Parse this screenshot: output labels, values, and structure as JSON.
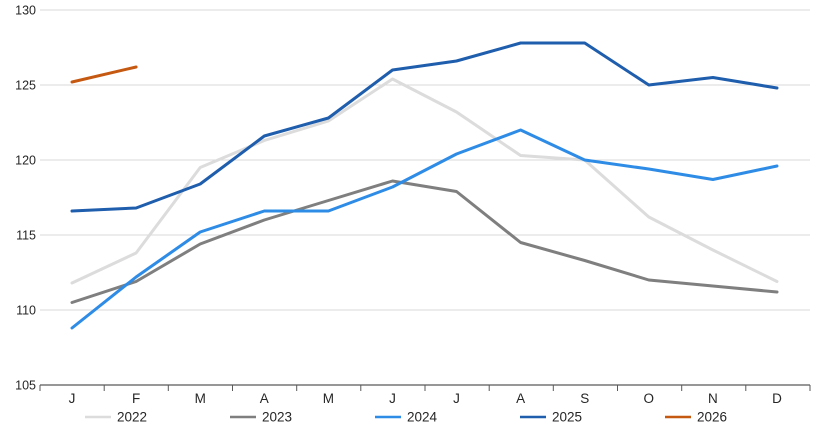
{
  "chart_data": {
    "type": "line",
    "title": "",
    "xlabel": "",
    "ylabel": "",
    "x_categories": [
      "J",
      "F",
      "M",
      "A",
      "M",
      "J",
      "J",
      "A",
      "S",
      "O",
      "N",
      "D"
    ],
    "y_ticks": [
      105,
      110,
      115,
      120,
      125,
      130
    ],
    "ylim": [
      105,
      130
    ],
    "grid": "horizontal-only",
    "legend_position": "bottom",
    "series": [
      {
        "name": "2022",
        "color": "#dcdcdc",
        "values": [
          111.8,
          113.8,
          119.5,
          121.3,
          122.6,
          125.4,
          123.2,
          120.3,
          120.0,
          116.2,
          114.0,
          111.9
        ]
      },
      {
        "name": "2023",
        "color": "#7f7f7f",
        "values": [
          110.5,
          111.9,
          114.4,
          116.0,
          117.3,
          118.6,
          117.9,
          114.5,
          113.3,
          112.0,
          111.6,
          111.2
        ]
      },
      {
        "name": "2024",
        "color": "#2e8ce6",
        "values": [
          108.8,
          112.2,
          115.2,
          116.6,
          116.6,
          118.2,
          120.4,
          122.0,
          120.0,
          119.4,
          118.7,
          119.6
        ]
      },
      {
        "name": "2025",
        "color": "#1f5dad",
        "values": [
          116.6,
          116.8,
          118.4,
          121.6,
          122.8,
          126.0,
          126.6,
          127.8,
          127.8,
          125.0,
          125.5,
          124.8
        ]
      },
      {
        "name": "2026",
        "color": "#c65911",
        "values": [
          125.2,
          126.2,
          null,
          null,
          null,
          null,
          null,
          null,
          null,
          null,
          null,
          null
        ]
      }
    ]
  },
  "colors": {
    "background": "#ffffff",
    "grid": "#d9d9d9",
    "axis": "#595959",
    "text": "#262626"
  }
}
